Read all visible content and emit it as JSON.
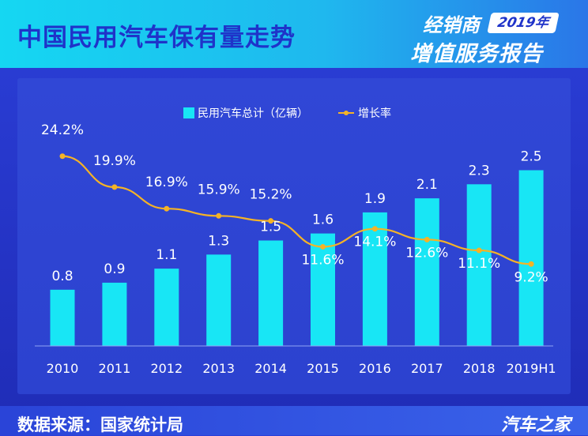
{
  "header": {
    "title": "中国民用汽车保有量走势",
    "brand_top": "经销商",
    "brand_year": "2019年",
    "brand_bottom": "增值服务报告"
  },
  "footer": {
    "source": "数据来源：国家统计局",
    "logo": "汽车之家"
  },
  "colors": {
    "bar": "#18e6f5",
    "line": "#f5b326",
    "text": "#ffffff"
  },
  "chart_data": {
    "type": "bar",
    "categories": [
      "2010",
      "2011",
      "2012",
      "2013",
      "2014",
      "2015",
      "2016",
      "2017",
      "2018",
      "2019H1"
    ],
    "series": [
      {
        "name": "民用汽车总计（亿辆）",
        "type": "bar",
        "values": [
          0.8,
          0.9,
          1.1,
          1.3,
          1.5,
          1.6,
          1.9,
          2.1,
          2.3,
          2.5
        ],
        "labels": [
          "0.8",
          "0.9",
          "1.1",
          "1.3",
          "1.5",
          "1.6",
          "1.9",
          "2.1",
          "2.3",
          "2.5"
        ]
      },
      {
        "name": "增长率",
        "type": "line",
        "values": [
          24.2,
          19.9,
          16.9,
          15.9,
          15.2,
          11.6,
          14.1,
          12.6,
          11.1,
          9.2
        ],
        "labels": [
          "24.2%",
          "19.9%",
          "16.9%",
          "15.9%",
          "15.2%",
          "11.6%",
          "14.1%",
          "12.6%",
          "11.1%",
          "9.2%"
        ]
      }
    ],
    "legend": "top-center",
    "grid": false
  }
}
